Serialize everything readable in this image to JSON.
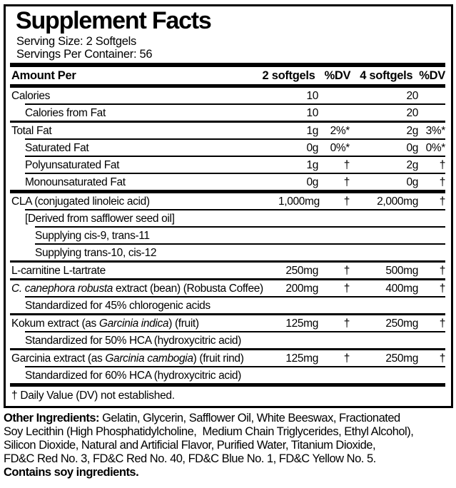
{
  "colors": {
    "text": "#000000",
    "background": "#ffffff",
    "rule": "#000000"
  },
  "label": {
    "title": "Supplement Facts",
    "serving_size": "Serving Size: 2 Softgels",
    "servings_per_container": "Servings Per Container: 56",
    "header": {
      "amount_per": "Amount Per",
      "col_2_softgels": "2 softgels",
      "col_dv_1": "%DV",
      "col_4_softgels": "4 softgels",
      "col_dv_2": "%DV"
    },
    "rows": [
      {
        "indent": 0,
        "sep": "none",
        "parts": [
          {
            "t": "Calories"
          }
        ],
        "c2": "10",
        "c3": "",
        "c4": "20",
        "c5": ""
      },
      {
        "indent": 1,
        "sep": "thin",
        "parts": [
          {
            "t": "Calories from Fat"
          }
        ],
        "c2": "10",
        "c3": "",
        "c4": "20",
        "c5": ""
      },
      {
        "indent": 0,
        "sep": "main",
        "parts": [
          {
            "t": "Total Fat"
          }
        ],
        "c2": "1g",
        "c3": "2%*",
        "c4": "2g",
        "c5": "3%*"
      },
      {
        "indent": 1,
        "sep": "thin",
        "parts": [
          {
            "t": "Saturated Fat"
          }
        ],
        "c2": "0g",
        "c3": "0%*",
        "c4": "0g",
        "c5": "0%*"
      },
      {
        "indent": 1,
        "sep": "thin",
        "parts": [
          {
            "t": "Polyunsaturated Fat"
          }
        ],
        "c2": "1g",
        "c3": "†",
        "c4": "2g",
        "c5": "†"
      },
      {
        "indent": 1,
        "sep": "thin",
        "parts": [
          {
            "t": "Monounsaturated Fat"
          }
        ],
        "c2": "0g",
        "c3": "†",
        "c4": "0g",
        "c5": "†"
      },
      {
        "indent": 0,
        "sep": "thick",
        "parts": [
          {
            "t": "CLA (conjugated linoleic acid)"
          }
        ],
        "c2": "1,000mg",
        "c3": "†",
        "c4": "2,000mg",
        "c5": "†"
      },
      {
        "indent": 1,
        "sep": "thin",
        "parts": [
          {
            "t": "[Derived from safflower seed oil]"
          }
        ],
        "c2": "",
        "c3": "",
        "c4": "",
        "c5": ""
      },
      {
        "indent": 2,
        "sep": "thin",
        "parts": [
          {
            "t": "Supplying cis-9, trans-11"
          }
        ],
        "c2": "",
        "c3": "",
        "c4": "",
        "c5": ""
      },
      {
        "indent": 2,
        "sep": "thin",
        "parts": [
          {
            "t": "Supplying trans-10, cis-12"
          }
        ],
        "c2": "",
        "c3": "",
        "c4": "",
        "c5": ""
      },
      {
        "indent": 0,
        "sep": "main",
        "parts": [
          {
            "t": "L-carnitine L-tartrate"
          }
        ],
        "c2": "250mg",
        "c3": "†",
        "c4": "500mg",
        "c5": "†"
      },
      {
        "indent": 0,
        "sep": "main",
        "parts": [
          {
            "t": "C. canephora robusta",
            "i": true
          },
          {
            "t": " extract (bean) (Robusta Coffee)"
          }
        ],
        "c2": "200mg",
        "c3": "†",
        "c4": "400mg",
        "c5": "†"
      },
      {
        "indent": 1,
        "sep": "thin",
        "parts": [
          {
            "t": "Standardized for 45% chlorogenic acids"
          }
        ],
        "c2": "",
        "c3": "",
        "c4": "",
        "c5": ""
      },
      {
        "indent": 0,
        "sep": "main",
        "parts": [
          {
            "t": "Kokum extract (as "
          },
          {
            "t": "Garcinia indica",
            "i": true
          },
          {
            "t": ") (fruit)"
          }
        ],
        "c2": "125mg",
        "c3": "†",
        "c4": "250mg",
        "c5": "†"
      },
      {
        "indent": 1,
        "sep": "thin",
        "parts": [
          {
            "t": "Standardized for 50% HCA (hydroxycitric acid)"
          }
        ],
        "c2": "",
        "c3": "",
        "c4": "",
        "c5": ""
      },
      {
        "indent": 0,
        "sep": "main",
        "parts": [
          {
            "t": "Garcinia extract (as "
          },
          {
            "t": "Garcinia cambogia",
            "i": true
          },
          {
            "t": ") (fruit rind)"
          }
        ],
        "c2": "125mg",
        "c3": "†",
        "c4": "250mg",
        "c5": "†"
      },
      {
        "indent": 1,
        "sep": "thin",
        "parts": [
          {
            "t": "Standardized for 60% HCA (hydroxycitric acid)"
          }
        ],
        "c2": "",
        "c3": "",
        "c4": "",
        "c5": ""
      }
    ],
    "footnote": "† Daily Value (DV) not established."
  },
  "other_ingredients": {
    "lead": "Other Ingredients:",
    "line1_rest": " Gelatin, Glycerin, Safflower Oil, White Beeswax, Fractionated",
    "lines": [
      "Soy Lecithin (High Phosphatidylcholine,  Medium Chain Triglycerides, Ethyl Alcohol),",
      "Silicon Dioxide, Natural and Artificial Flavor, Purified Water, Titanium Dioxide,",
      "FD&C Red No. 3, FD&C Red No. 40, FD&C Blue No. 1, FD&C Yellow No. 5."
    ],
    "contains": "Contains soy ingredients."
  }
}
